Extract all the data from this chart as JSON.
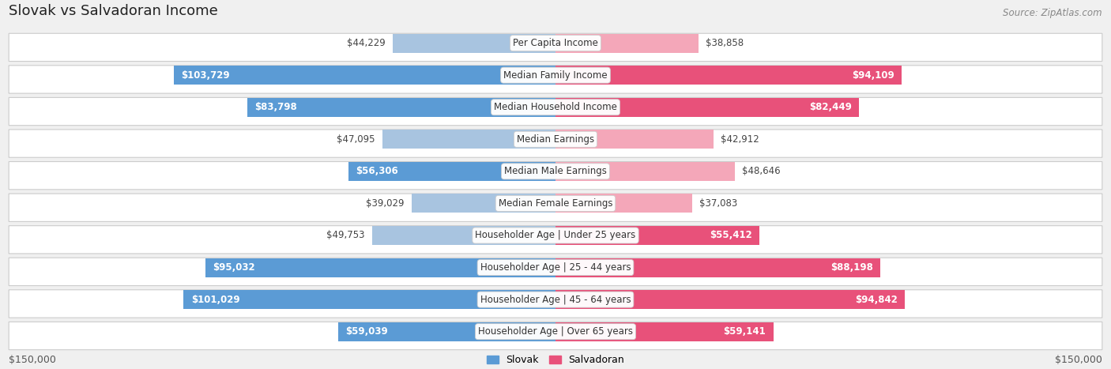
{
  "title": "Slovak vs Salvadoran Income",
  "source": "Source: ZipAtlas.com",
  "categories": [
    "Per Capita Income",
    "Median Family Income",
    "Median Household Income",
    "Median Earnings",
    "Median Male Earnings",
    "Median Female Earnings",
    "Householder Age | Under 25 years",
    "Householder Age | 25 - 44 years",
    "Householder Age | 45 - 64 years",
    "Householder Age | Over 65 years"
  ],
  "slovak_values": [
    44229,
    103729,
    83798,
    47095,
    56306,
    39029,
    49753,
    95032,
    101029,
    59039
  ],
  "salvadoran_values": [
    38858,
    94109,
    82449,
    42912,
    48646,
    37083,
    55412,
    88198,
    94842,
    59141
  ],
  "slovak_labels": [
    "$44,229",
    "$103,729",
    "$83,798",
    "$47,095",
    "$56,306",
    "$39,029",
    "$49,753",
    "$95,032",
    "$101,029",
    "$59,039"
  ],
  "salvadoran_labels": [
    "$38,858",
    "$94,109",
    "$82,449",
    "$42,912",
    "$48,646",
    "$37,083",
    "$55,412",
    "$88,198",
    "$94,842",
    "$59,141"
  ],
  "slovak_color_light": "#a8c4e0",
  "slovak_color_dark": "#5b9bd5",
  "salvadoran_color_light": "#f4a7b9",
  "salvadoran_color_dark": "#e8517a",
  "background_color": "#f0f0f0",
  "max_value": 150000,
  "legend_slovak": "Slovak",
  "legend_salvadoran": "Salvadoran",
  "xlabel_left": "$150,000",
  "xlabel_right": "$150,000",
  "title_fontsize": 13,
  "label_fontsize": 8.5,
  "category_fontsize": 8.5,
  "inside_threshold": 55000
}
